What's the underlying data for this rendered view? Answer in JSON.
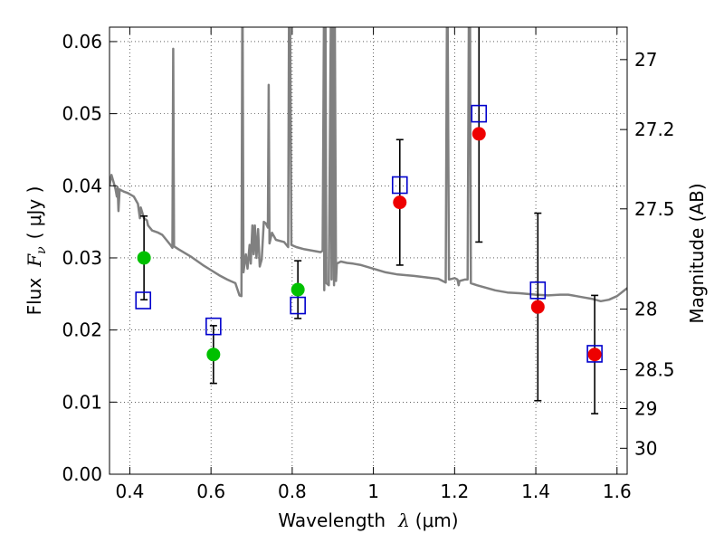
{
  "chart_data": {
    "type": "scatter",
    "xlabel_text": "Wavelength",
    "xlabel_symbol": "λ",
    "xlabel_unit": "(μm)",
    "ylabel_text": "Flux",
    "ylabel_symbol": "F",
    "ylabel_subscript": "ν",
    "ylabel_unit": "( μJy )",
    "y2label": "Magnitude (AB)",
    "xlim": [
      0.35,
      1.625
    ],
    "ylim": [
      0.0,
      0.062
    ],
    "grid": true,
    "x_ticks": [
      {
        "value": 0.4,
        "label": "0.4"
      },
      {
        "value": 0.6,
        "label": "0.6"
      },
      {
        "value": 0.8,
        "label": "0.8"
      },
      {
        "value": 1.0,
        "label": "1"
      },
      {
        "value": 1.2,
        "label": "1.2"
      },
      {
        "value": 1.4,
        "label": "1.4"
      },
      {
        "value": 1.6,
        "label": "1.6"
      }
    ],
    "y_ticks": [
      {
        "value": 0.0,
        "label": "0.00"
      },
      {
        "value": 0.01,
        "label": "0.01"
      },
      {
        "value": 0.02,
        "label": "0.02"
      },
      {
        "value": 0.03,
        "label": "0.03"
      },
      {
        "value": 0.04,
        "label": "0.04"
      },
      {
        "value": 0.05,
        "label": "0.05"
      },
      {
        "value": 0.06,
        "label": "0.06"
      }
    ],
    "y2_ticks": [
      {
        "flux": 0.0575,
        "label": "27"
      },
      {
        "flux": 0.0478,
        "label": "27.2"
      },
      {
        "flux": 0.0368,
        "label": "27.5"
      },
      {
        "flux": 0.0229,
        "label": "28"
      },
      {
        "flux": 0.0145,
        "label": "28.5"
      },
      {
        "flux": 0.0091,
        "label": "29"
      },
      {
        "flux": 0.0036,
        "label": "30"
      }
    ],
    "colors": {
      "model": "#808080",
      "optical_points": "#00c000",
      "nir_points": "#ee0000",
      "model_flux_boxes": "#0000cc",
      "errorbars": "#000000"
    },
    "series": [
      {
        "kind": "observed",
        "points": [
          {
            "x": 0.435,
            "y": 0.03,
            "err": 0.0058,
            "color": "#00c000"
          },
          {
            "x": 0.606,
            "y": 0.0166,
            "err": 0.004,
            "color": "#00c000"
          },
          {
            "x": 0.814,
            "y": 0.0256,
            "err": 0.004,
            "color": "#00c000"
          },
          {
            "x": 1.065,
            "y": 0.0377,
            "err": 0.0087,
            "color": "#ee0000"
          },
          {
            "x": 1.26,
            "y": 0.0472,
            "err": 0.015,
            "color": "#ee0000"
          },
          {
            "x": 1.405,
            "y": 0.0232,
            "err": 0.013,
            "color": "#ee0000"
          },
          {
            "x": 1.545,
            "y": 0.0166,
            "err": 0.0082,
            "color": "#ee0000"
          }
        ]
      },
      {
        "kind": "model-bandpass-flux",
        "points": [
          {
            "x": 0.433,
            "y": 0.0241
          },
          {
            "x": 0.606,
            "y": 0.0205
          },
          {
            "x": 0.814,
            "y": 0.0234
          },
          {
            "x": 1.065,
            "y": 0.0401
          },
          {
            "x": 1.26,
            "y": 0.05
          },
          {
            "x": 1.405,
            "y": 0.0255
          },
          {
            "x": 1.545,
            "y": 0.0167
          }
        ]
      },
      {
        "kind": "model-spectrum",
        "points": [
          [
            0.35,
            0.04
          ],
          [
            0.355,
            0.0415
          ],
          [
            0.36,
            0.0405
          ],
          [
            0.365,
            0.0395
          ],
          [
            0.368,
            0.0385
          ],
          [
            0.37,
            0.0398
          ],
          [
            0.372,
            0.0365
          ],
          [
            0.375,
            0.0395
          ],
          [
            0.385,
            0.0392
          ],
          [
            0.395,
            0.039
          ],
          [
            0.41,
            0.0385
          ],
          [
            0.42,
            0.0375
          ],
          [
            0.425,
            0.0355
          ],
          [
            0.427,
            0.037
          ],
          [
            0.435,
            0.0355
          ],
          [
            0.442,
            0.0352
          ],
          [
            0.445,
            0.0345
          ],
          [
            0.455,
            0.0338
          ],
          [
            0.47,
            0.0335
          ],
          [
            0.48,
            0.0332
          ],
          [
            0.49,
            0.0325
          ],
          [
            0.5,
            0.0318
          ],
          [
            0.505,
            0.0314
          ],
          [
            0.507,
            0.059
          ],
          [
            0.509,
            0.0316
          ],
          [
            0.52,
            0.0312
          ],
          [
            0.55,
            0.0302
          ],
          [
            0.58,
            0.029
          ],
          [
            0.6,
            0.0283
          ],
          [
            0.62,
            0.0276
          ],
          [
            0.64,
            0.027
          ],
          [
            0.66,
            0.0265
          ],
          [
            0.67,
            0.0248
          ],
          [
            0.675,
            0.0247
          ],
          [
            0.677,
            0.062
          ],
          [
            0.678,
            0.062
          ],
          [
            0.68,
            0.028
          ],
          [
            0.686,
            0.0305
          ],
          [
            0.69,
            0.0285
          ],
          [
            0.695,
            0.0318
          ],
          [
            0.698,
            0.0292
          ],
          [
            0.702,
            0.0345
          ],
          [
            0.705,
            0.0305
          ],
          [
            0.708,
            0.0345
          ],
          [
            0.712,
            0.03
          ],
          [
            0.716,
            0.034
          ],
          [
            0.72,
            0.0288
          ],
          [
            0.725,
            0.0298
          ],
          [
            0.73,
            0.035
          ],
          [
            0.735,
            0.0348
          ],
          [
            0.74,
            0.0342
          ],
          [
            0.742,
            0.054
          ],
          [
            0.744,
            0.032
          ],
          [
            0.75,
            0.0335
          ],
          [
            0.76,
            0.0325
          ],
          [
            0.78,
            0.0322
          ],
          [
            0.79,
            0.0315
          ],
          [
            0.792,
            0.062
          ],
          [
            0.795,
            0.062
          ],
          [
            0.798,
            0.0318
          ],
          [
            0.81,
            0.0315
          ],
          [
            0.83,
            0.0312
          ],
          [
            0.85,
            0.031
          ],
          [
            0.87,
            0.0308
          ],
          [
            0.875,
            0.031
          ],
          [
            0.878,
            0.062
          ],
          [
            0.879,
            0.0255
          ],
          [
            0.882,
            0.062
          ],
          [
            0.884,
            0.0265
          ],
          [
            0.89,
            0.0262
          ],
          [
            0.895,
            0.062
          ],
          [
            0.897,
            0.027
          ],
          [
            0.9,
            0.062
          ],
          [
            0.903,
            0.0262
          ],
          [
            0.905,
            0.062
          ],
          [
            0.908,
            0.0268
          ],
          [
            0.91,
            0.0292
          ],
          [
            0.92,
            0.0295
          ],
          [
            0.935,
            0.0293
          ],
          [
            0.95,
            0.0292
          ],
          [
            0.97,
            0.029
          ],
          [
            1.0,
            0.0285
          ],
          [
            1.03,
            0.028
          ],
          [
            1.06,
            0.0277
          ],
          [
            1.1,
            0.0275
          ],
          [
            1.13,
            0.0273
          ],
          [
            1.16,
            0.0271
          ],
          [
            1.178,
            0.0266
          ],
          [
            1.181,
            0.062
          ],
          [
            1.183,
            0.062
          ],
          [
            1.186,
            0.027
          ],
          [
            1.2,
            0.0272
          ],
          [
            1.207,
            0.027
          ],
          [
            1.21,
            0.0262
          ],
          [
            1.212,
            0.0268
          ],
          [
            1.225,
            0.027
          ],
          [
            1.232,
            0.027
          ],
          [
            1.235,
            0.062
          ],
          [
            1.238,
            0.062
          ],
          [
            1.24,
            0.0265
          ],
          [
            1.255,
            0.0262
          ],
          [
            1.3,
            0.0255
          ],
          [
            1.33,
            0.0252
          ],
          [
            1.36,
            0.0251
          ],
          [
            1.4,
            0.0249
          ],
          [
            1.43,
            0.0248
          ],
          [
            1.46,
            0.0249
          ],
          [
            1.48,
            0.0249
          ],
          [
            1.5,
            0.0247
          ],
          [
            1.52,
            0.0245
          ],
          [
            1.54,
            0.0243
          ],
          [
            1.56,
            0.024
          ],
          [
            1.58,
            0.0242
          ],
          [
            1.6,
            0.0247
          ],
          [
            1.625,
            0.0258
          ]
        ]
      }
    ]
  }
}
